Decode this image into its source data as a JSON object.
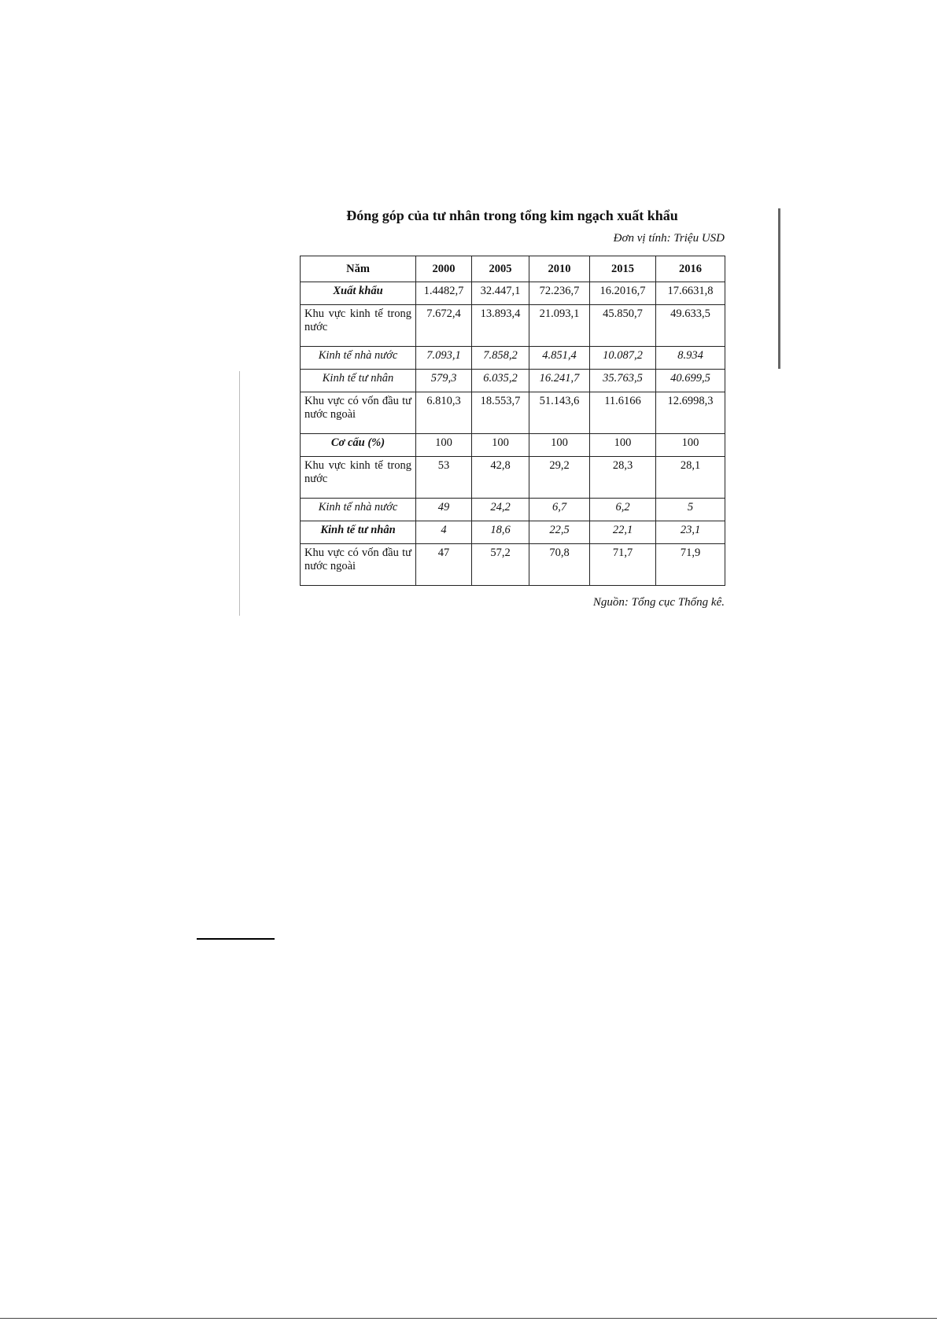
{
  "document": {
    "title": "Đóng góp của tư nhân trong tổng kim ngạch xuất khẩu",
    "unit": "Đơn vị tính: Triệu USD",
    "table": {
      "header": [
        "Năm",
        "2000",
        "2005",
        "2010",
        "2015",
        "2016"
      ],
      "rows": [
        [
          "Xuất khẩu",
          "1.4482,7",
          "32.447,1",
          "72.236,7",
          "16.2016,7",
          "17.6631,8"
        ],
        [
          "Khu vực kinh tế trong nước",
          "7.672,4",
          "13.893,4",
          "21.093,1",
          "45.850,7",
          "49.633,5"
        ],
        [
          "Kinh tế nhà nước",
          "7.093,1",
          "7.858,2",
          "4.851,4",
          "10.087,2",
          "8.934"
        ],
        [
          "Kinh tế tư nhân",
          "579,3",
          "6.035,2",
          "16.241,7",
          "35.763,5",
          "40.699,5"
        ],
        [
          "Khu vực có vốn đầu tư nước ngoài",
          "6.810,3",
          "18.553,7",
          "51.143,6",
          "11.6166",
          "12.6998,3"
        ],
        [
          "Cơ cấu (%)",
          "100",
          "100",
          "100",
          "100",
          "100"
        ],
        [
          "Khu vực kinh tế trong nước",
          "53",
          "42,8",
          "29,2",
          "28,3",
          "28,1"
        ],
        [
          "Kinh tế nhà nước",
          "49",
          "24,2",
          "6,7",
          "6,2",
          "5"
        ],
        [
          "Kinh tế tư nhân",
          "4",
          "18,6",
          "22,5",
          "22,1",
          "23,1"
        ],
        [
          "Khu vực có vốn đầu tư nước ngoài",
          "47",
          "57,2",
          "70,8",
          "71,7",
          "71,9"
        ]
      ]
    },
    "source": "Nguồn: Tổng cục Thống kê."
  }
}
